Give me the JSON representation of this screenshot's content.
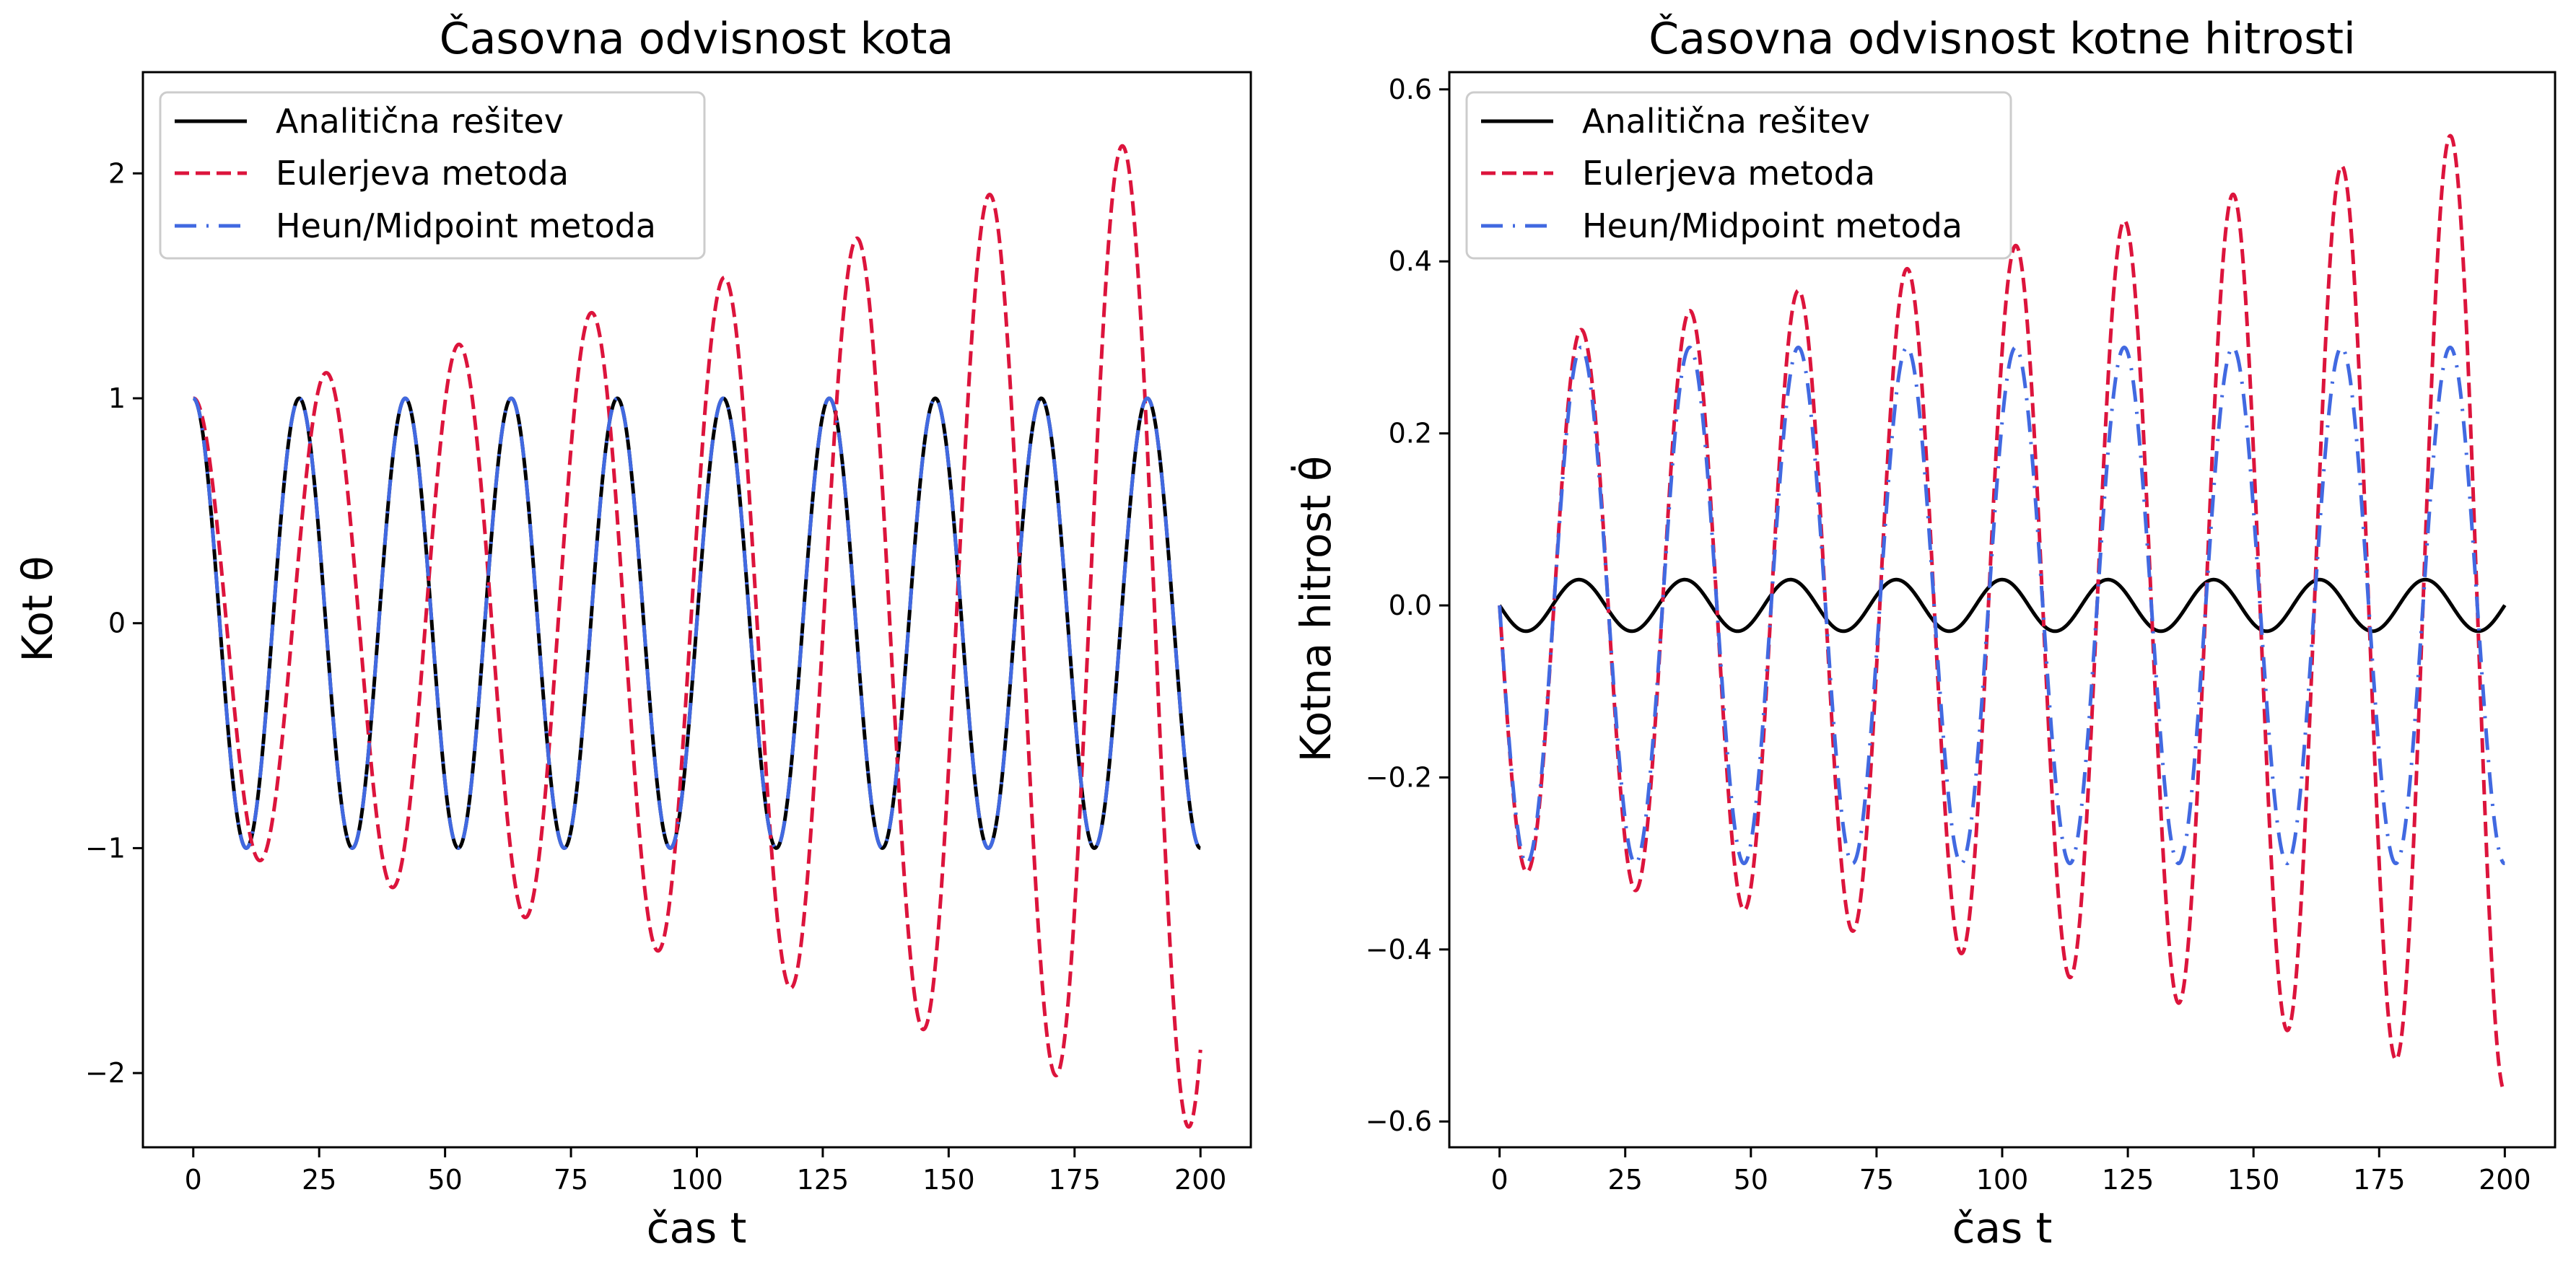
{
  "colors": {
    "analytic": "#000000",
    "euler": "#dc143c",
    "heun": "#4169e1",
    "axes": "#000000",
    "background": "#ffffff"
  },
  "chart_data": [
    {
      "type": "line",
      "title": "Časovna odvisnost kota",
      "xlabel": "čas t",
      "ylabel": "Kot θ",
      "xlim": [
        -10,
        210
      ],
      "ylim": [
        -2.33,
        2.45
      ],
      "xticks": [
        0,
        25,
        50,
        75,
        100,
        125,
        150,
        175,
        200
      ],
      "xtick_labels": [
        "0",
        "25",
        "50",
        "75",
        "100",
        "125",
        "150",
        "175",
        "200"
      ],
      "yticks": [
        -2,
        -1,
        0,
        1,
        2
      ],
      "ytick_labels": [
        "−2",
        "−1",
        "0",
        "1",
        "2"
      ],
      "legend_position": "top-left",
      "grid": false,
      "series": [
        {
          "name": "Analitična rešitev",
          "style": "solid",
          "color": "#000000",
          "function": "cos(omega*t)",
          "omega": 0.2985,
          "amplitude": 1.0,
          "t_range": [
            0,
            200
          ]
        },
        {
          "name": "Eulerjeva metoda",
          "style": "dashed",
          "color": "#dc143c",
          "function": "A0*exp(r*t)*cos(omega*t)",
          "omega": 0.2385,
          "amplitude": 1.0,
          "growth_rate": 0.00408,
          "t_range": [
            0,
            200
          ]
        },
        {
          "name": "Heun/Midpoint metoda",
          "style": "dashdot",
          "color": "#4169e1",
          "function": "cos(omega*t)",
          "omega": 0.2985,
          "amplitude": 1.0,
          "t_range": [
            0,
            200
          ]
        }
      ]
    },
    {
      "type": "line",
      "title": "Časovna odvisnost kotne hitrosti",
      "xlabel": "čas t",
      "ylabel": "Kotna hitrost θ̇",
      "xlim": [
        -10,
        210
      ],
      "ylim": [
        -0.63,
        0.62
      ],
      "xticks": [
        0,
        25,
        50,
        75,
        100,
        125,
        150,
        175,
        200
      ],
      "xtick_labels": [
        "0",
        "25",
        "50",
        "75",
        "100",
        "125",
        "150",
        "175",
        "200"
      ],
      "yticks": [
        -0.6,
        -0.4,
        -0.2,
        0.0,
        0.2,
        0.4,
        0.6
      ],
      "ytick_labels": [
        "−0.6",
        "−0.4",
        "−0.2",
        "0.0",
        "0.2",
        "0.4",
        "0.6"
      ],
      "legend_position": "top-left",
      "grid": false,
      "series": [
        {
          "name": "Analitična rešitev",
          "style": "solid",
          "color": "#000000",
          "function": "-A*sin(omega*t)",
          "omega": 0.2985,
          "amplitude": 0.03,
          "t_range": [
            0,
            200
          ]
        },
        {
          "name": "Eulerjeva metoda",
          "style": "dashed",
          "color": "#dc143c",
          "function": "-A0*exp(r*t)*sin(omega*t)",
          "omega": 0.2907,
          "amplitude": 0.305,
          "growth_rate": 0.00308,
          "t_range": [
            0,
            200
          ]
        },
        {
          "name": "Heun/Midpoint metoda",
          "style": "dashdot",
          "color": "#4169e1",
          "function": "-A*sin(omega*t)",
          "omega": 0.2907,
          "amplitude": 0.3,
          "t_range": [
            0,
            200
          ]
        }
      ]
    }
  ]
}
